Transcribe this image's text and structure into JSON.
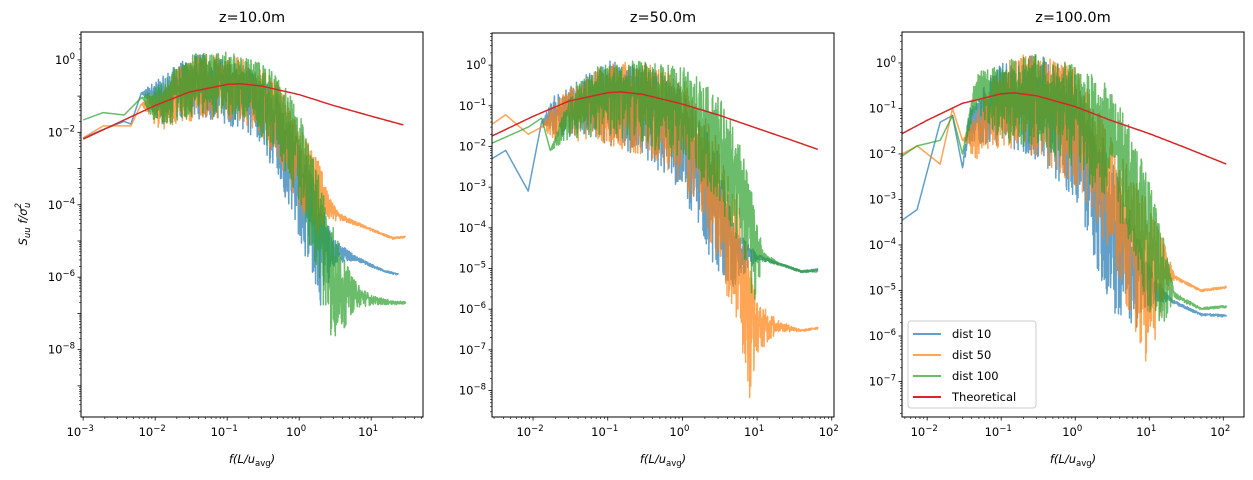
{
  "chart_data": {
    "type": "line",
    "figure_description": "Normalized longitudinal velocity spectra at three heights compared with a theoretical spectrum",
    "shared": {
      "xlabel": "f(L/u_avg)",
      "ylabel": "S_uu f/σ_u^2",
      "xscale": "log",
      "yscale": "log",
      "grid": false,
      "series_colors": {
        "dist 10": "#1f77b4",
        "dist 50": "#ff7f0e",
        "dist 100": "#2ca02c",
        "Theoretical": "#d62728"
      },
      "series_alpha": 0.7
    },
    "legend": {
      "placement": "lower-left",
      "in_subplot": 2,
      "entries": [
        "dist 10",
        "dist 50",
        "dist 100",
        "Theoretical"
      ]
    },
    "subplots": [
      {
        "title": "z=10.0m",
        "show_ylabel": true,
        "xlim_log10": [
          -3.03,
          1.72
        ],
        "ylim_log10": [
          -9.86,
          0.77
        ],
        "xticks": [
          {
            "exp": -3,
            "label": "10",
            "sup": "−3"
          },
          {
            "exp": -2,
            "label": "10",
            "sup": "−2"
          },
          {
            "exp": -1,
            "label": "10",
            "sup": "−1"
          },
          {
            "exp": 0,
            "label": "10",
            "sup": "0"
          },
          {
            "exp": 1,
            "label": "10",
            "sup": "1"
          }
        ],
        "yticks": [
          {
            "exp": 0,
            "label": "10",
            "sup": "0"
          },
          {
            "exp": -2,
            "label": "10",
            "sup": "−2"
          },
          {
            "exp": -4,
            "label": "10",
            "sup": "−4"
          },
          {
            "exp": -6,
            "label": "10",
            "sup": "−6"
          },
          {
            "exp": -8,
            "label": "10",
            "sup": "−8"
          }
        ],
        "theoretical": {
          "x": [
            0.001,
            0.003,
            0.01,
            0.03,
            0.1,
            0.15,
            0.3,
            1,
            3,
            10,
            28
          ],
          "y": [
            0.0065,
            0.018,
            0.055,
            0.13,
            0.21,
            0.22,
            0.19,
            0.11,
            0.055,
            0.028,
            0.016
          ]
        },
        "series": [
          {
            "name": "dist 10",
            "x": [
              0.001,
              0.0019,
              0.0037,
              0.0046,
              0.0064,
              0.009,
              0.012,
              0.02,
              0.04,
              0.08,
              0.2,
              0.5,
              1,
              2,
              3,
              6,
              15,
              24
            ],
            "y": [
              0.007,
              0.012,
              0.02,
              0.017,
              0.12,
              0.12,
              0.1,
              0.2,
              0.3,
              0.25,
              0.12,
              0.02,
              0.0006,
              1.2e-05,
              6e-06,
              3.5e-06,
              1.5e-06,
              1.2e-06
            ],
            "spread": [
              0,
              0,
              0,
              0,
              0,
              0.3,
              0.5,
              0.6,
              0.7,
              0.7,
              0.7,
              0.9,
              1.1,
              1.2,
              0.3,
              0.05,
              0.02,
              0.02
            ]
          },
          {
            "name": "dist 50",
            "x": [
              0.001,
              0.0019,
              0.0046,
              0.0064,
              0.009,
              0.012,
              0.02,
              0.04,
              0.08,
              0.2,
              0.5,
              1,
              2,
              2.5,
              3.5,
              8,
              20,
              30
            ],
            "y": [
              0.007,
              0.015,
              0.015,
              0.06,
              0.06,
              0.05,
              0.15,
              0.3,
              0.3,
              0.2,
              0.04,
              0.002,
              0.0002,
              0.0001,
              5e-05,
              2.5e-05,
              1.2e-05,
              1.3e-05
            ],
            "spread": [
              0,
              0,
              0,
              0,
              0.3,
              0.4,
              0.6,
              0.7,
              0.7,
              0.7,
              0.8,
              0.9,
              0.8,
              0.3,
              0.08,
              0.03,
              0.02,
              0.02
            ]
          },
          {
            "name": "dist 100",
            "x": [
              0.001,
              0.0019,
              0.0037,
              0.0064,
              0.009,
              0.012,
              0.02,
              0.04,
              0.08,
              0.2,
              0.5,
              1,
              2,
              3,
              4,
              6,
              10,
              20,
              30
            ],
            "y": [
              0.022,
              0.035,
              0.03,
              0.09,
              0.08,
              0.07,
              0.18,
              0.35,
              0.35,
              0.25,
              0.05,
              0.004,
              3e-05,
              1.5e-06,
              6e-07,
              4e-07,
              2.5e-07,
              2e-07,
              2e-07
            ],
            "spread": [
              0,
              0,
              0,
              0,
              0.3,
              0.5,
              0.6,
              0.7,
              0.7,
              0.7,
              0.9,
              1.0,
              1.2,
              1.4,
              0.8,
              0.3,
              0.1,
              0.04,
              0.03
            ]
          }
        ]
      },
      {
        "title": "z=50.0m",
        "show_ylabel": false,
        "xlim_log10": [
          -2.55,
          2.03
        ],
        "ylim_log10": [
          -8.65,
          0.79
        ],
        "xticks": [
          {
            "exp": -2,
            "label": "10",
            "sup": "−2"
          },
          {
            "exp": -1,
            "label": "10",
            "sup": "−1"
          },
          {
            "exp": 0,
            "label": "10",
            "sup": "0"
          },
          {
            "exp": 1,
            "label": "10",
            "sup": "1"
          },
          {
            "exp": 2,
            "label": "10",
            "sup": "2"
          }
        ],
        "yticks": [
          {
            "exp": 0,
            "label": "10",
            "sup": "0"
          },
          {
            "exp": -1,
            "label": "10",
            "sup": "−1"
          },
          {
            "exp": -2,
            "label": "10",
            "sup": "−2"
          },
          {
            "exp": -3,
            "label": "10",
            "sup": "−3"
          },
          {
            "exp": -4,
            "label": "10",
            "sup": "−4"
          },
          {
            "exp": -5,
            "label": "10",
            "sup": "−5"
          },
          {
            "exp": -6,
            "label": "10",
            "sup": "−6"
          },
          {
            "exp": -7,
            "label": "10",
            "sup": "−7"
          },
          {
            "exp": -8,
            "label": "10",
            "sup": "−8"
          }
        ],
        "theoretical": {
          "x": [
            0.0028,
            0.01,
            0.03,
            0.1,
            0.15,
            0.3,
            1,
            3,
            10,
            30,
            65
          ],
          "y": [
            0.018,
            0.055,
            0.13,
            0.21,
            0.22,
            0.19,
            0.11,
            0.06,
            0.028,
            0.014,
            0.0085
          ]
        },
        "series": [
          {
            "name": "dist 10",
            "x": [
              0.0028,
              0.0043,
              0.0086,
              0.013,
              0.02,
              0.05,
              0.1,
              0.3,
              1,
              3,
              5,
              10,
              20,
              40,
              65
            ],
            "y": [
              0.005,
              0.008,
              0.0008,
              0.04,
              0.08,
              0.15,
              0.2,
              0.15,
              0.03,
              0.0005,
              3e-05,
              2e-05,
              1.3e-05,
              8.5e-06,
              9.5e-06
            ],
            "spread": [
              0,
              0,
              0,
              0,
              0.4,
              0.6,
              0.8,
              0.9,
              1.0,
              1.2,
              0.6,
              0.05,
              0.02,
              0.02,
              0.02
            ]
          },
          {
            "name": "dist 50",
            "x": [
              0.0028,
              0.0043,
              0.0086,
              0.013,
              0.02,
              0.05,
              0.1,
              0.3,
              1,
              3,
              6,
              8,
              10,
              20,
              40,
              65
            ],
            "y": [
              0.035,
              0.06,
              0.02,
              0.03,
              0.06,
              0.12,
              0.2,
              0.15,
              0.05,
              0.001,
              2e-05,
              1e-06,
              5e-07,
              4e-07,
              3e-07,
              3.5e-07
            ],
            "spread": [
              0,
              0,
              0,
              0,
              0.4,
              0.6,
              0.8,
              0.9,
              1.0,
              1.2,
              1.3,
              1.4,
              0.5,
              0.1,
              0.02,
              0.02
            ]
          },
          {
            "name": "dist 100",
            "x": [
              0.0028,
              0.0086,
              0.013,
              0.017,
              0.03,
              0.05,
              0.1,
              0.3,
              1,
              3,
              6,
              9,
              12,
              20,
              40,
              65
            ],
            "y": [
              0.012,
              0.03,
              0.05,
              0.008,
              0.06,
              0.15,
              0.25,
              0.2,
              0.12,
              0.02,
              0.001,
              5e-05,
              2e-05,
              1.3e-05,
              8.5e-06,
              8.8e-06
            ],
            "spread": [
              0,
              0,
              0,
              0,
              0.4,
              0.6,
              0.7,
              0.8,
              0.9,
              1.0,
              1.1,
              1.0,
              0.1,
              0.02,
              0.02,
              0.02
            ]
          }
        ]
      },
      {
        "title": "z=100.0m",
        "show_ylabel": false,
        "xlim_log10": [
          -2.34,
          2.28
        ],
        "ylim_log10": [
          -7.78,
          0.68
        ],
        "xticks": [
          {
            "exp": -2,
            "label": "10",
            "sup": "−2"
          },
          {
            "exp": -1,
            "label": "10",
            "sup": "−1"
          },
          {
            "exp": 0,
            "label": "10",
            "sup": "0"
          },
          {
            "exp": 1,
            "label": "10",
            "sup": "1"
          },
          {
            "exp": 2,
            "label": "10",
            "sup": "2"
          }
        ],
        "yticks": [
          {
            "exp": 0,
            "label": "10",
            "sup": "0"
          },
          {
            "exp": -1,
            "label": "10",
            "sup": "−1"
          },
          {
            "exp": -2,
            "label": "10",
            "sup": "−2"
          },
          {
            "exp": -3,
            "label": "10",
            "sup": "−3"
          },
          {
            "exp": -4,
            "label": "10",
            "sup": "−4"
          },
          {
            "exp": -5,
            "label": "10",
            "sup": "−5"
          },
          {
            "exp": -6,
            "label": "10",
            "sup": "−6"
          },
          {
            "exp": -7,
            "label": "10",
            "sup": "−7"
          }
        ],
        "theoretical": {
          "x": [
            0.0046,
            0.01,
            0.03,
            0.1,
            0.15,
            0.3,
            1,
            3,
            10,
            30,
            110
          ],
          "y": [
            0.028,
            0.055,
            0.13,
            0.21,
            0.22,
            0.19,
            0.11,
            0.055,
            0.028,
            0.014,
            0.006
          ]
        },
        "series": [
          {
            "name": "dist 10",
            "x": [
              0.0046,
              0.0073,
              0.015,
              0.022,
              0.03,
              0.037,
              0.06,
              0.1,
              0.3,
              1,
              3,
              6,
              12,
              20,
              50,
              110
            ],
            "y": [
              0.00035,
              0.0006,
              0.05,
              0.07,
              0.005,
              0.05,
              0.1,
              0.2,
              0.2,
              0.05,
              0.0005,
              4e-05,
              1.2e-05,
              6e-06,
              3e-06,
              2.8e-06
            ],
            "spread": [
              0,
              0,
              0,
              0,
              0,
              0.3,
              0.5,
              0.7,
              0.9,
              1.1,
              1.3,
              1.0,
              0.2,
              0.03,
              0.02,
              0.02
            ]
          },
          {
            "name": "dist 50",
            "x": [
              0.0046,
              0.0073,
              0.015,
              0.022,
              0.03,
              0.045,
              0.1,
              0.3,
              1,
              3,
              6,
              10,
              15,
              22,
              50,
              110
            ],
            "y": [
              0.01,
              0.015,
              0.006,
              0.1,
              0.02,
              0.03,
              0.2,
              0.25,
              0.08,
              0.003,
              0.0002,
              3e-05,
              4e-05,
              2e-05,
              1e-05,
              1.2e-05
            ],
            "spread": [
              0,
              0,
              0,
              0,
              0,
              0.4,
              0.7,
              0.9,
              1.0,
              1.1,
              1.3,
              1.4,
              0.6,
              0.03,
              0.02,
              0.02
            ]
          },
          {
            "name": "dist 100",
            "x": [
              0.0046,
              0.0073,
              0.015,
              0.022,
              0.03,
              0.045,
              0.1,
              0.3,
              1,
              3,
              6,
              10,
              15,
              22,
              50,
              110
            ],
            "y": [
              0.009,
              0.015,
              0.02,
              0.07,
              0.01,
              0.28,
              0.25,
              0.25,
              0.12,
              0.03,
              0.003,
              0.0002,
              3e-05,
              8e-06,
              4e-06,
              4.5e-06
            ],
            "spread": [
              0,
              0,
              0,
              0,
              0,
              0.3,
              0.7,
              0.8,
              0.9,
              1.0,
              1.0,
              1.1,
              0.8,
              0.05,
              0.02,
              0.02
            ]
          }
        ]
      }
    ]
  }
}
